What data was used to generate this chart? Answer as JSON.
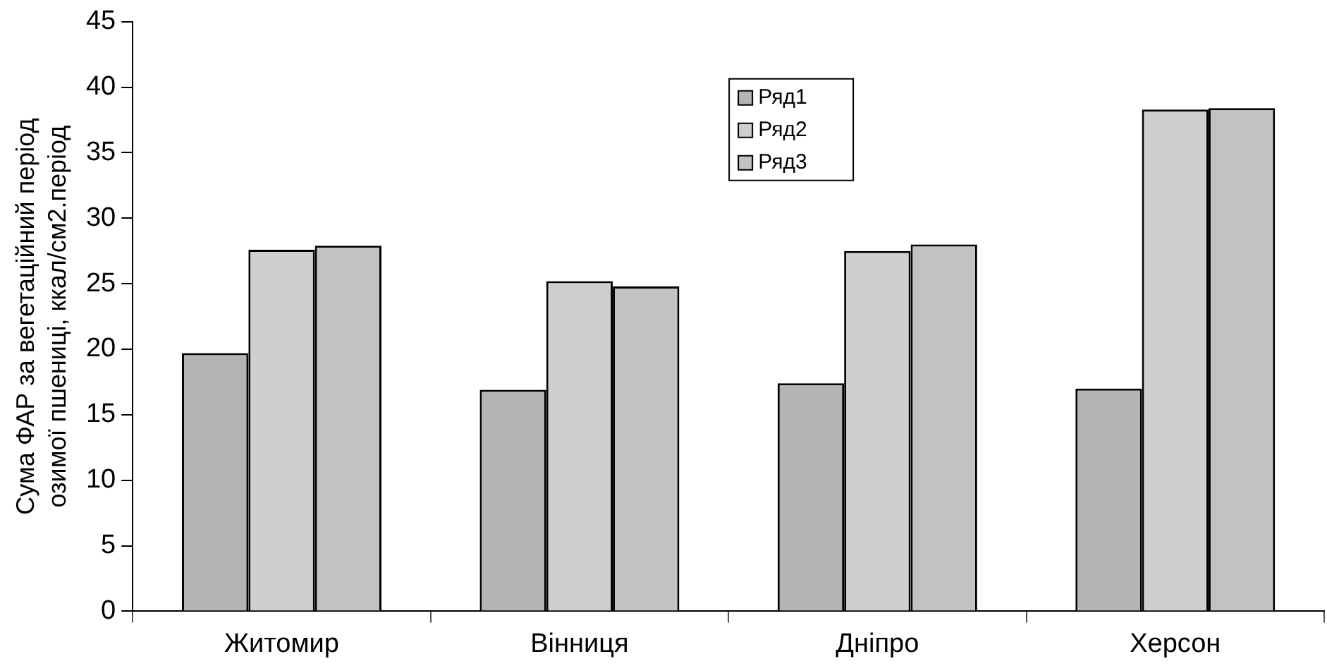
{
  "chart_data": {
    "type": "bar",
    "ylabel": "Сума ФАР за вегетаційний період\nозимої пшениці, ккал/см2.період",
    "categories": [
      "Житомир",
      "Вінниця",
      "Дніпро",
      "Херсон"
    ],
    "series": [
      {
        "name": "Ряд1",
        "color": "#b4b4b4",
        "values": [
          19.7,
          16.9,
          17.4,
          17.0
        ]
      },
      {
        "name": "Ряд2",
        "color": "#cfcfcf",
        "values": [
          27.6,
          25.2,
          27.5,
          38.3
        ]
      },
      {
        "name": "Ряд3",
        "color": "#c2c2c2",
        "values": [
          27.9,
          24.8,
          28.0,
          38.4
        ]
      }
    ],
    "ylim": [
      0,
      45
    ],
    "yticks": [
      0,
      5,
      10,
      15,
      20,
      25,
      30,
      35,
      40,
      45
    ],
    "grid": false,
    "legend": "top"
  }
}
